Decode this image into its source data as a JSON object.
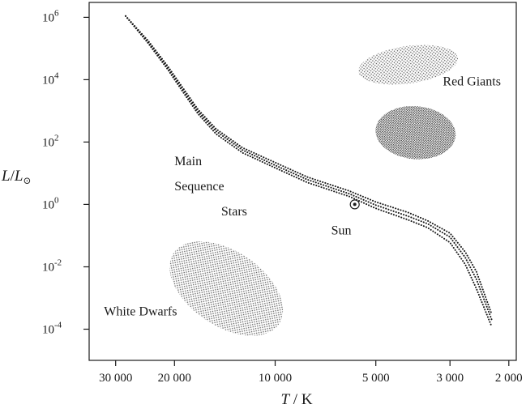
{
  "chart_data": {
    "type": "scatter",
    "title": "",
    "xlabel": {
      "var": "T",
      "unit": "K"
    },
    "ylabel": {
      "var": "L",
      "sub": "L",
      "sub_symbol": "⊙"
    },
    "x_scale": "log",
    "y_scale": "log",
    "x_reversed": true,
    "xlim": [
      36000,
      1900
    ],
    "ylim": [
      1e-05,
      3000000
    ],
    "grid": false,
    "legend": "none",
    "x_ticks": [
      {
        "value": 30000,
        "label": "30 000"
      },
      {
        "value": 20000,
        "label": "20 000"
      },
      {
        "value": 10000,
        "label": "10 000"
      },
      {
        "value": 5000,
        "label": "5 000"
      },
      {
        "value": 3000,
        "label": "3 000"
      },
      {
        "value": 2000,
        "label": "2 000"
      }
    ],
    "y_ticks": [
      {
        "value": 1000000,
        "base": "10",
        "exp": "6"
      },
      {
        "value": 10000,
        "base": "10",
        "exp": "4"
      },
      {
        "value": 100,
        "base": "10",
        "exp": "2"
      },
      {
        "value": 1,
        "base": "10",
        "exp": "0"
      },
      {
        "value": 0.01,
        "base": "10",
        "exp": "-2"
      },
      {
        "value": 0.0001,
        "base": "10",
        "exp": "-4"
      }
    ],
    "main_sequence": {
      "lines": [
        {
          "points": [
            [
              28000,
              1100000
            ],
            [
              24000,
              150000
            ],
            [
              21000,
              22000
            ],
            [
              19000,
              4500
            ],
            [
              17000,
              800
            ],
            [
              15000,
              180
            ],
            [
              12500,
              45
            ],
            [
              10000,
              15
            ],
            [
              8000,
              5
            ],
            [
              6000,
              1.8
            ],
            [
              5000,
              0.75
            ],
            [
              4000,
              0.32
            ],
            [
              3500,
              0.18
            ],
            [
              3000,
              0.06
            ],
            [
              2700,
              0.012
            ],
            [
              2500,
              0.002
            ],
            [
              2250,
              0.00012
            ]
          ]
        },
        {
          "points": [
            [
              28000,
              1100000
            ],
            [
              24000,
              165000
            ],
            [
              21000,
              25000
            ],
            [
              19000,
              5200
            ],
            [
              17000,
              950
            ],
            [
              15000,
              220
            ],
            [
              12500,
              55
            ],
            [
              10000,
              18
            ],
            [
              8000,
              6.2
            ],
            [
              6000,
              2.2
            ],
            [
              5000,
              0.95
            ],
            [
              4000,
              0.42
            ],
            [
              3500,
              0.24
            ],
            [
              3000,
              0.09
            ],
            [
              2700,
              0.02
            ],
            [
              2500,
              0.004
            ],
            [
              2250,
              0.0002
            ]
          ]
        },
        {
          "points": [
            [
              28000,
              1100000
            ],
            [
              24000,
              180000
            ],
            [
              21000,
              28000
            ],
            [
              19000,
              6000
            ],
            [
              17000,
              1100
            ],
            [
              15000,
              260
            ],
            [
              12500,
              65
            ],
            [
              10000,
              22
            ],
            [
              8000,
              7.5
            ],
            [
              6000,
              2.7
            ],
            [
              5000,
              1.2
            ],
            [
              4000,
              0.55
            ],
            [
              3500,
              0.3
            ],
            [
              3000,
              0.12
            ],
            [
              2700,
              0.03
            ],
            [
              2500,
              0.007
            ],
            [
              2250,
              0.0003
            ]
          ]
        }
      ]
    },
    "regions": [
      {
        "label": "Red Giants",
        "center": [
          4000,
          30000
        ],
        "rx_dex": 0.15,
        "ry_dex": 0.6,
        "rotation_deg": -8,
        "density": "light"
      },
      {
        "label": "Red Giants",
        "center": [
          3800,
          200
        ],
        "rx_dex": 0.12,
        "ry_dex": 0.85,
        "rotation_deg": 5,
        "density": "dense"
      },
      {
        "label": "White Dwarfs",
        "center": [
          14000,
          0.002
        ],
        "rx_dex": 0.19,
        "ry_dex": 1.2,
        "rotation_deg": 34,
        "density": "light"
      }
    ],
    "annotations": [
      {
        "id": "label-red-giants",
        "text": "Red Giants",
        "anchor": [
          3150,
          6500
        ]
      },
      {
        "id": "label-main-1",
        "text": "Main",
        "anchor": [
          20000,
          18
        ]
      },
      {
        "id": "label-main-2",
        "text": "Sequence",
        "anchor": [
          20000,
          2.8
        ]
      },
      {
        "id": "label-main-3",
        "text": "Stars",
        "anchor": [
          14500,
          0.45
        ]
      },
      {
        "id": "label-sun",
        "text": "Sun",
        "anchor": [
          6800,
          0.11
        ]
      },
      {
        "id": "label-white-dwarfs",
        "text": "White Dwarfs",
        "anchor": [
          32500,
          0.00028
        ]
      }
    ],
    "sun": {
      "x": 5780,
      "y": 1
    }
  }
}
